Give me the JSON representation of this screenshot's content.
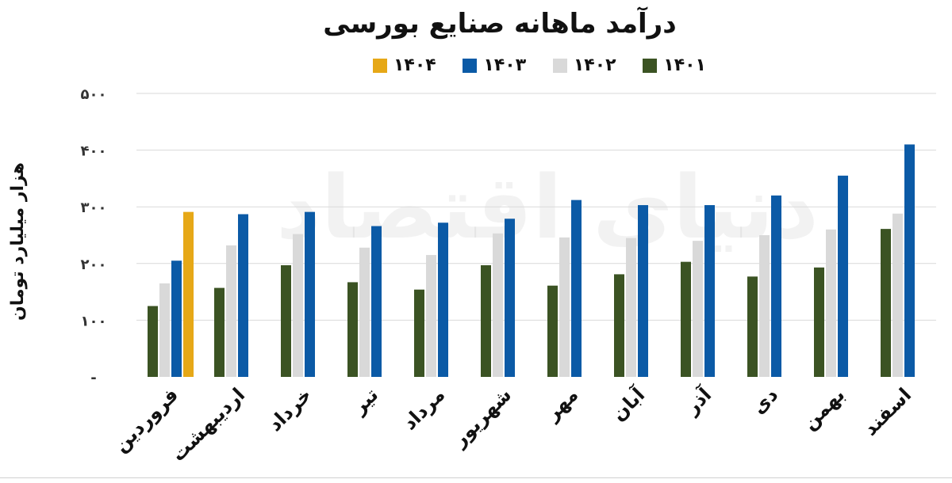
{
  "chart_data": {
    "type": "bar",
    "title": "درآمد ماهانه صنایع بورسی",
    "ylabel": "هزار میلیارد تومان",
    "xlabel": "",
    "ylim": [
      0,
      500
    ],
    "yticks": [
      {
        "value": 0,
        "label": "-"
      },
      {
        "value": 100,
        "label": "۱۰۰"
      },
      {
        "value": 200,
        "label": "۲۰۰"
      },
      {
        "value": 300,
        "label": "۳۰۰"
      },
      {
        "value": 400,
        "label": "۴۰۰"
      },
      {
        "value": 500,
        "label": "۵۰۰"
      }
    ],
    "grid": true,
    "legend_position": "top",
    "categories": [
      "فروردین",
      "اردیبهشت",
      "خرداد",
      "تیر",
      "مرداد",
      "شهریور",
      "مهر",
      "آبان",
      "آذر",
      "دی",
      "بهمن",
      "اسفند"
    ],
    "series": [
      {
        "name": "۱۴۰۱",
        "color": "#3b5323",
        "values": [
          125,
          157,
          197,
          167,
          154,
          197,
          161,
          181,
          203,
          177,
          193,
          261
        ]
      },
      {
        "name": "۱۴۰۲",
        "color": "#d9d9d9",
        "values": [
          165,
          232,
          252,
          228,
          215,
          253,
          246,
          245,
          240,
          250,
          260,
          288
        ]
      },
      {
        "name": "۱۴۰۳",
        "color": "#0b5aa6",
        "values": [
          205,
          287,
          291,
          266,
          272,
          279,
          312,
          303,
          303,
          320,
          355,
          410
        ]
      },
      {
        "name": "۱۴۰۴",
        "color": "#e6a817",
        "values": [
          291,
          null,
          null,
          null,
          null,
          null,
          null,
          null,
          null,
          null,
          null,
          null
        ]
      }
    ],
    "legend_order": [
      3,
      2,
      1,
      0
    ],
    "watermark": "دنیای اقتصاد"
  }
}
